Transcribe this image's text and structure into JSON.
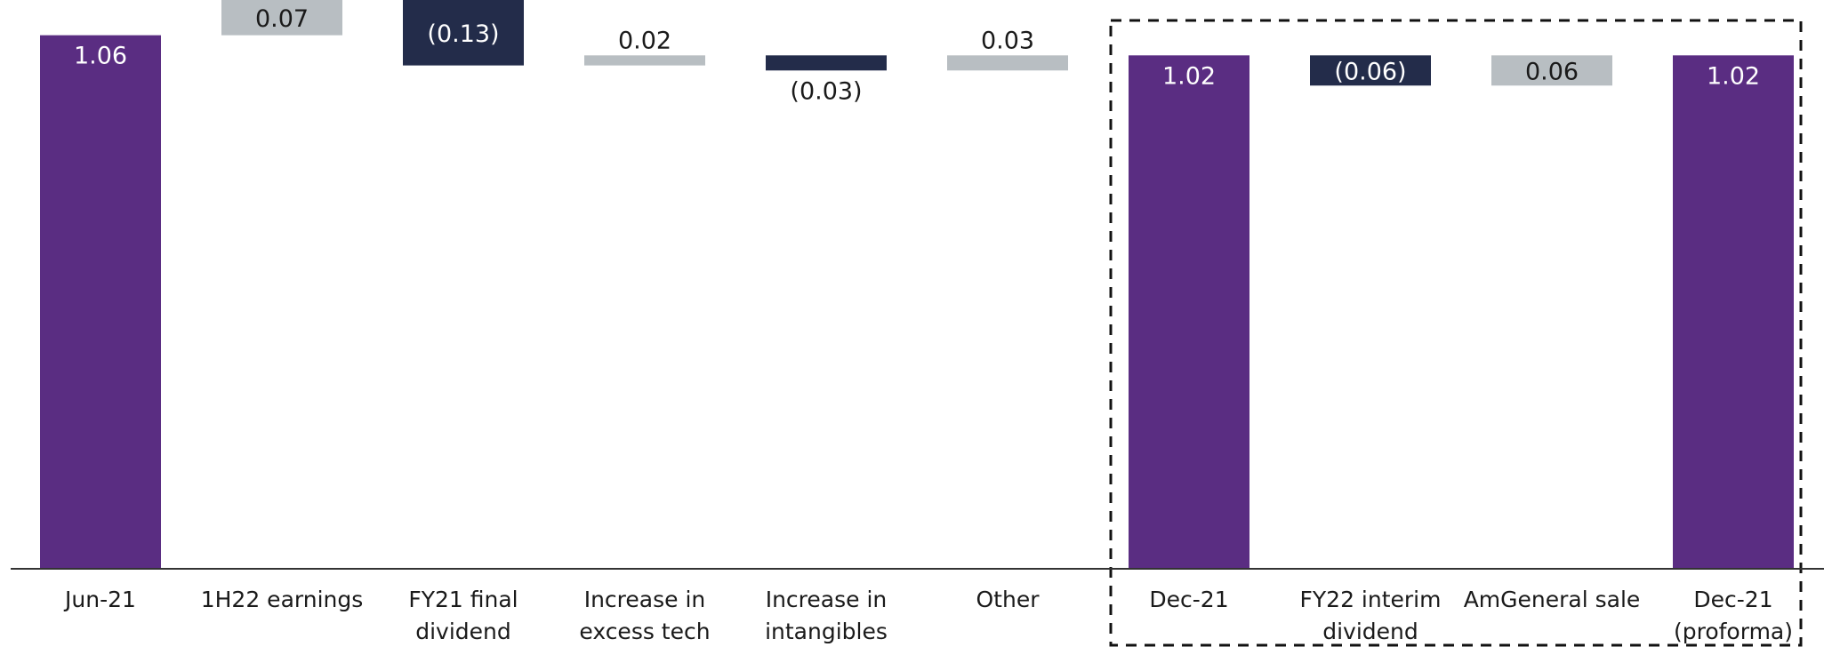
{
  "chart_data": {
    "type": "bar",
    "subtype": "waterfall",
    "categories": [
      [
        "Jun-21"
      ],
      [
        "1H22 earnings"
      ],
      [
        "FY21 final",
        "dividend"
      ],
      [
        "Increase in",
        "excess tech"
      ],
      [
        "Increase in",
        "intangibles"
      ],
      [
        "Other"
      ],
      [
        "Dec-21"
      ],
      [
        "FY22 interim",
        "dividend"
      ],
      [
        "AmGeneral sale"
      ],
      [
        "Dec-21",
        "(proforma)"
      ]
    ],
    "steps": [
      {
        "kind": "total",
        "value": 1.06,
        "label": "1.06"
      },
      {
        "kind": "delta",
        "value": 0.07,
        "label": "0.07"
      },
      {
        "kind": "delta",
        "value": -0.13,
        "label": "(0.13)"
      },
      {
        "kind": "delta",
        "value": 0.02,
        "label": "0.02"
      },
      {
        "kind": "delta",
        "value": -0.03,
        "label": "(0.03)"
      },
      {
        "kind": "delta",
        "value": 0.03,
        "label": "0.03"
      },
      {
        "kind": "total",
        "value": 1.02,
        "label": "1.02"
      },
      {
        "kind": "delta",
        "value": -0.06,
        "label": "(0.06)"
      },
      {
        "kind": "delta",
        "value": 0.06,
        "label": "0.06"
      },
      {
        "kind": "total",
        "value": 1.02,
        "label": "1.02"
      }
    ],
    "ylim": [
      0,
      1.13
    ],
    "highlight_box": {
      "from_category": 6,
      "to_category": 9
    },
    "grid": false,
    "colors": {
      "total": "#5a2d82",
      "increase": "#b8bec2",
      "decrease": "#232c4a",
      "total_label": "#ffffff",
      "decrease_label": "#ffffff",
      "increase_label": "#1a1a1a",
      "axis": "#333333",
      "box": "#111111"
    }
  }
}
